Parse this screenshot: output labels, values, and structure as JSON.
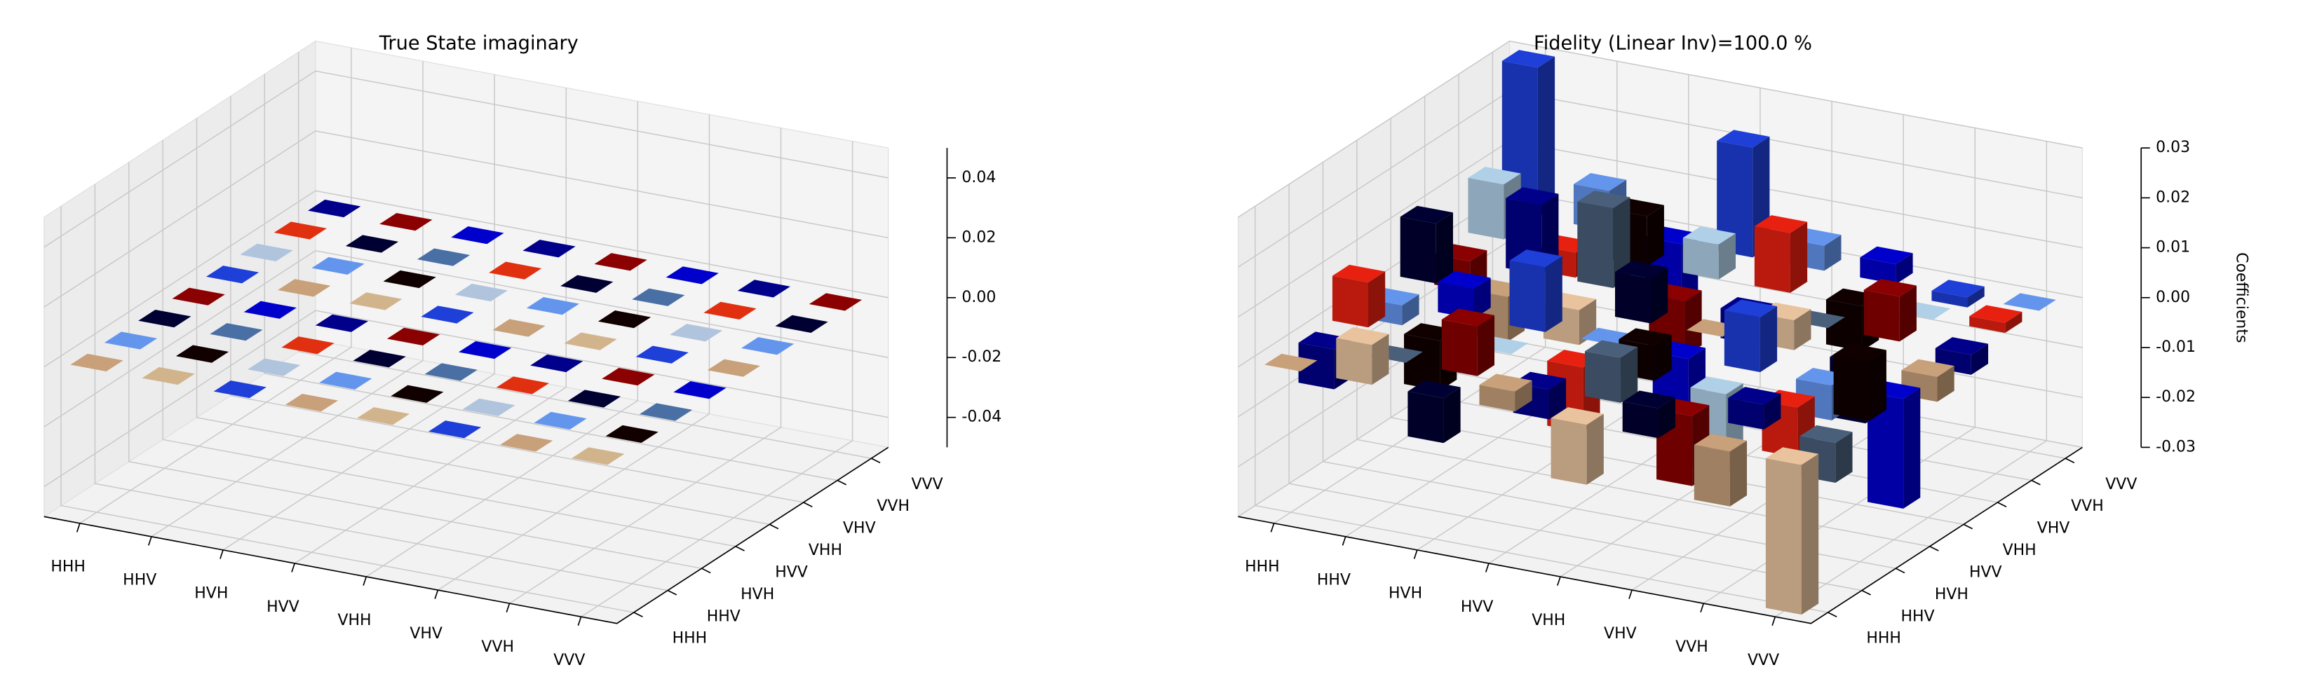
{
  "chart_data": [
    {
      "type": "bar3d",
      "title": "True State imaginary",
      "categories": [
        "HHH",
        "HHV",
        "HVH",
        "HVV",
        "VHH",
        "VHV",
        "VVH",
        "VVV"
      ],
      "y_categories": [
        "HHH",
        "HHV",
        "HVH",
        "HVV",
        "VHH",
        "VHV",
        "VVH",
        "VVV"
      ],
      "values": [
        [
          0,
          0,
          0,
          0,
          0,
          0,
          0,
          0
        ],
        [
          0,
          0,
          0,
          0,
          0,
          0,
          0,
          0
        ],
        [
          0,
          0,
          0,
          0,
          0,
          0,
          0,
          0
        ],
        [
          0,
          0,
          0,
          0,
          0,
          0,
          0,
          0
        ],
        [
          0,
          0,
          0,
          0,
          0,
          0,
          0,
          0
        ],
        [
          0,
          0,
          0,
          0,
          0,
          0,
          0,
          0
        ],
        [
          0,
          0,
          0,
          0,
          0,
          0,
          0,
          0
        ],
        [
          0,
          0,
          0,
          0,
          0,
          0,
          0,
          0
        ]
      ],
      "zlim": [
        -0.05,
        0.05
      ],
      "zticks": [
        -0.04,
        -0.02,
        {
          "value": 0,
          "label": "0.00"
        },
        0.02,
        0.04
      ],
      "palette": [
        "#c8a07a",
        "#6495ed",
        "#000033",
        "#8b0000",
        "#1e3fd8",
        "#b0c4de",
        "#e03010",
        "#00008b",
        "#d2b48c",
        "#100000",
        "#4a6fa5",
        "#0000cd"
      ]
    },
    {
      "type": "bar3d",
      "title": "Fidelity (Linear Inv)=100.0 %",
      "zlabel": "Coefficients",
      "categories": [
        "HHH",
        "HHV",
        "HVH",
        "HVV",
        "VHH",
        "VHV",
        "VVH",
        "VVV"
      ],
      "y_categories": [
        "HHH",
        "HHV",
        "HVH",
        "HVV",
        "VHH",
        "VHV",
        "VVH",
        "VVV"
      ],
      "values": [
        [
          0,
          -0.008,
          0.009,
          -0.004,
          0.012,
          -0.006,
          0.011,
          0.03
        ],
        [
          0.008,
          0,
          -0.01,
          0.006,
          -0.009,
          0.014,
          -0.005,
          0.008
        ],
        [
          -0.009,
          0.01,
          0,
          0.013,
          -0.007,
          0.016,
          0.01,
          -0.012
        ],
        [
          0.004,
          -0.006,
          -0.013,
          0,
          0.009,
          -0.011,
          0.007,
          0.022
        ],
        [
          -0.012,
          0.009,
          0.007,
          -0.009,
          0,
          -0.006,
          0.012,
          0.005
        ],
        [
          0.006,
          -0.014,
          -0.016,
          0.011,
          0.006,
          0,
          -0.009,
          0.004
        ],
        [
          -0.011,
          0.005,
          -0.01,
          -0.007,
          -0.012,
          0.009,
          0,
          -0.002
        ],
        [
          -0.03,
          -0.008,
          0.012,
          -0.022,
          -0.005,
          -0.004,
          0.002,
          0
        ]
      ],
      "zlim": [
        -0.03,
        0.03
      ],
      "zticks": [
        -0.03,
        -0.02,
        -0.01,
        {
          "value": 0,
          "label": "0.00"
        },
        0.01,
        0.02,
        0.03
      ],
      "palette": [
        "#c8a07a",
        "#00008b",
        "#e82010",
        "#6495ed",
        "#000033",
        "#8b0000",
        "#b0d0e8",
        "#1e3fd8",
        "#e8c39e",
        "#4a5f7a",
        "#100000",
        "#0000cd"
      ]
    }
  ]
}
